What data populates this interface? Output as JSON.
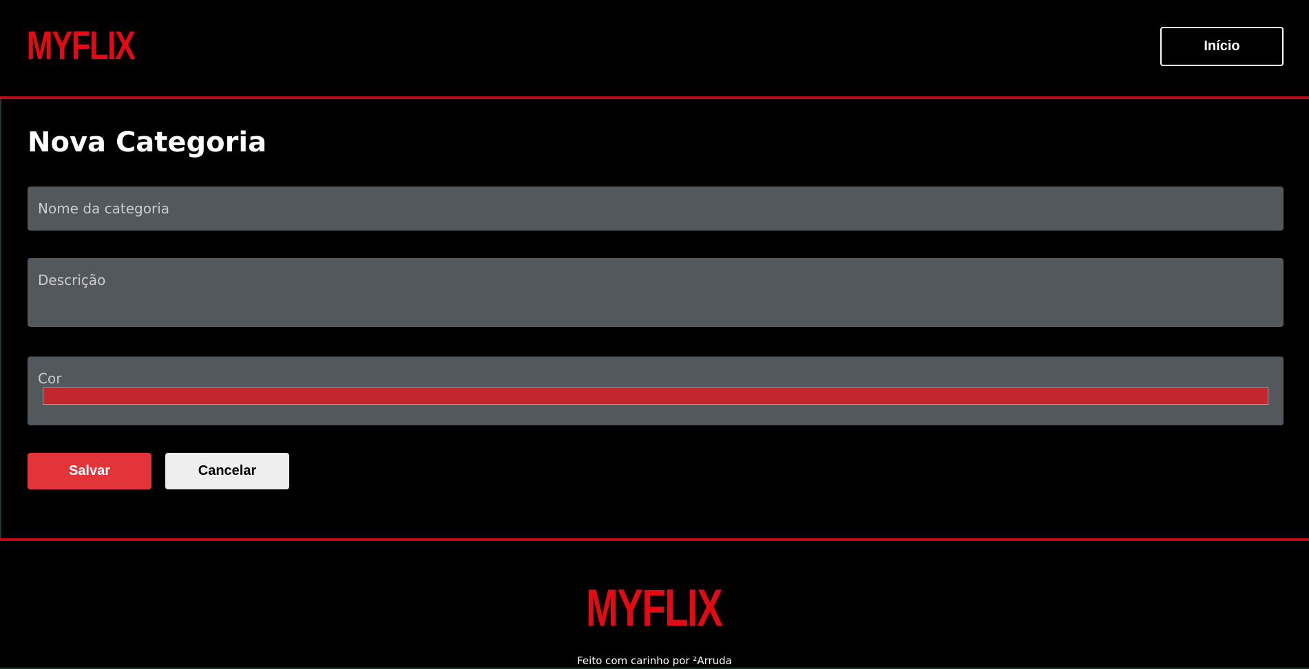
{
  "header": {
    "logo": "MYFLIX",
    "home_button": "Início"
  },
  "main": {
    "title": "Nova Categoria",
    "fields": {
      "name_label": "Nome da categoria",
      "description_label": "Descrição",
      "color_label": "Cor",
      "color_value": "#c1272d"
    },
    "buttons": {
      "save": "Salvar",
      "cancel": "Cancelar"
    }
  },
  "footer": {
    "logo": "MYFLIX",
    "credit": "Feito com carinho por ²Arruda"
  },
  "colors": {
    "brand_red": "#e50914",
    "field_bg": "#53585d",
    "save_button": "#e3343a",
    "cancel_button": "#eeeeee"
  }
}
